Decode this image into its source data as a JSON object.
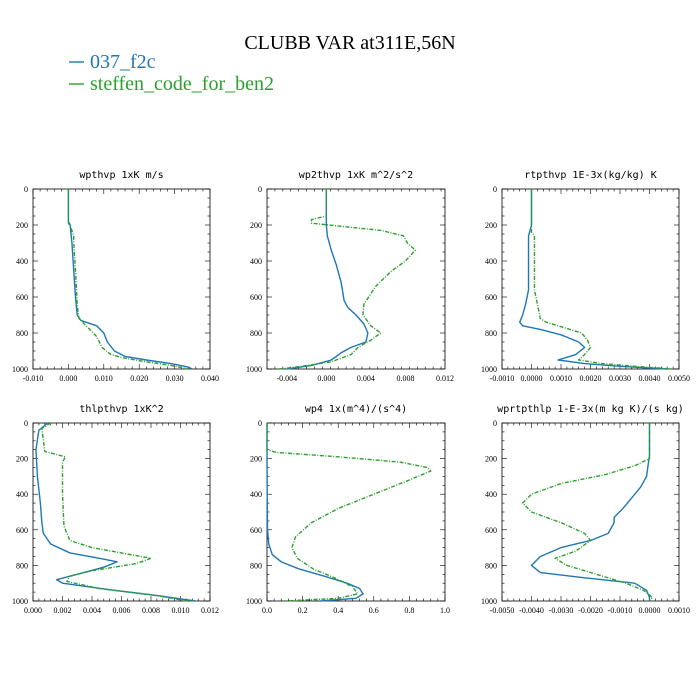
{
  "title": "CLUBB VAR at311E,56N",
  "legend": [
    {
      "name": "037_f2c",
      "color": "#1f77b4"
    },
    {
      "name": "steffen_code_for_ben2",
      "color": "#2ca02c"
    }
  ],
  "chart_data": [
    {
      "type": "line",
      "title": "wpthvp  1xK m/s",
      "xlim": [
        -0.01,
        0.04
      ],
      "ylim": [
        1000,
        0
      ],
      "xticks": [
        "-0.010",
        "0.000",
        "0.010",
        "0.020",
        "0.030",
        "0.040"
      ],
      "yticks": [
        "0",
        "200",
        "400",
        "600",
        "800",
        "1000"
      ],
      "series": [
        {
          "name": "037_f2c",
          "color": "#1f77b4",
          "dash": false,
          "points": [
            [
              0,
              0
            ],
            [
              0,
              180
            ],
            [
              0.0005,
              200
            ],
            [
              0.001,
              300
            ],
            [
              0.0015,
              450
            ],
            [
              0.002,
              600
            ],
            [
              0.0025,
              700
            ],
            [
              0.0035,
              730
            ],
            [
              0.008,
              760
            ],
            [
              0.01,
              800
            ],
            [
              0.011,
              850
            ],
            [
              0.013,
              900
            ],
            [
              0.016,
              930
            ],
            [
              0.022,
              950
            ],
            [
              0.029,
              970
            ],
            [
              0.034,
              990
            ],
            [
              0.035,
              1000
            ]
          ]
        },
        {
          "name": "steffen_code_for_ben2",
          "color": "#2ca02c",
          "dash": true,
          "points": [
            [
              0,
              0
            ],
            [
              0,
              190
            ],
            [
              0.0008,
              220
            ],
            [
              0.0015,
              260
            ],
            [
              0.0015,
              300
            ],
            [
              0.002,
              450
            ],
            [
              0.0025,
              650
            ],
            [
              0.003,
              720
            ],
            [
              0.006,
              780
            ],
            [
              0.008,
              820
            ],
            [
              0.0095,
              880
            ],
            [
              0.012,
              920
            ],
            [
              0.016,
              940
            ],
            [
              0.022,
              960
            ],
            [
              0.029,
              980
            ],
            [
              0.034,
              1000
            ]
          ]
        }
      ]
    },
    {
      "type": "line",
      "title": "wp2thvp  1xK m^2/s^2",
      "xlim": [
        -0.006,
        0.012
      ],
      "ylim": [
        1000,
        0
      ],
      "xticks": [
        "-0.004",
        "0.000",
        "0.004",
        "0.008",
        "0.012"
      ],
      "xtick_values": [
        -0.004,
        0.0,
        0.004,
        0.008,
        0.012
      ],
      "yticks": [
        "0",
        "200",
        "400",
        "600",
        "800",
        "1000"
      ],
      "series": [
        {
          "name": "037_f2c",
          "color": "#1f77b4",
          "dash": false,
          "points": [
            [
              0,
              0
            ],
            [
              0,
              200
            ],
            [
              0.0001,
              260
            ],
            [
              0.0005,
              340
            ],
            [
              0.001,
              420
            ],
            [
              0.0015,
              520
            ],
            [
              0.0018,
              620
            ],
            [
              0.0022,
              660
            ],
            [
              0.003,
              700
            ],
            [
              0.0038,
              750
            ],
            [
              0.0042,
              800
            ],
            [
              0.004,
              850
            ],
            [
              0.0025,
              880
            ],
            [
              0.0015,
              910
            ],
            [
              0.0005,
              950
            ],
            [
              -0.0015,
              980
            ],
            [
              -0.004,
              1000
            ]
          ]
        },
        {
          "name": "steffen_code_for_ben2",
          "color": "#2ca02c",
          "dash": true,
          "points": [
            [
              0,
              0
            ],
            [
              0,
              150
            ],
            [
              -0.0015,
              170
            ],
            [
              -0.0015,
              190
            ],
            [
              0.002,
              210
            ],
            [
              0.0055,
              230
            ],
            [
              0.0078,
              260
            ],
            [
              0.0082,
              300
            ],
            [
              0.009,
              340
            ],
            [
              0.008,
              400
            ],
            [
              0.0065,
              460
            ],
            [
              0.005,
              540
            ],
            [
              0.0038,
              640
            ],
            [
              0.0037,
              700
            ],
            [
              0.0045,
              760
            ],
            [
              0.0055,
              800
            ],
            [
              0.0045,
              840
            ],
            [
              0.0032,
              880
            ],
            [
              0.0025,
              920
            ],
            [
              0.0005,
              960
            ],
            [
              -0.0025,
              985
            ],
            [
              -0.0048,
              1000
            ]
          ]
        }
      ]
    },
    {
      "type": "line",
      "title": "rtpthvp  1E-3x(kg/kg) K",
      "xlim": [
        -0.001,
        0.005
      ],
      "ylim": [
        1000,
        0
      ],
      "xticks": [
        "-0.0010",
        "0.0000",
        "0.0010",
        "0.0020",
        "0.0030",
        "0.0040",
        "0.0050"
      ],
      "yticks": [
        "0",
        "200",
        "400",
        "600",
        "800",
        "1000"
      ],
      "series": [
        {
          "name": "037_f2c",
          "color": "#1f77b4",
          "dash": false,
          "points": [
            [
              0,
              0
            ],
            [
              0,
              200
            ],
            [
              -0.0001,
              260
            ],
            [
              -0.0001,
              400
            ],
            [
              -0.0001,
              560
            ],
            [
              -0.0002,
              640
            ],
            [
              -0.0003,
              700
            ],
            [
              -0.0004,
              740
            ],
            [
              -0.0003,
              760
            ],
            [
              0.0003,
              780
            ],
            [
              0.001,
              810
            ],
            [
              0.0016,
              850
            ],
            [
              0.0018,
              880
            ],
            [
              0.0015,
              920
            ],
            [
              0.0009,
              950
            ],
            [
              0.0018,
              970
            ],
            [
              0.003,
              985
            ],
            [
              0.0046,
              1000
            ]
          ]
        },
        {
          "name": "steffen_code_for_ben2",
          "color": "#2ca02c",
          "dash": true,
          "points": [
            [
              0,
              0
            ],
            [
              0,
              240
            ],
            [
              0.0001,
              260
            ],
            [
              0.0001,
              400
            ],
            [
              0.0001,
              560
            ],
            [
              0.0002,
              640
            ],
            [
              0.0003,
              720
            ],
            [
              0.0005,
              740
            ],
            [
              0.0011,
              770
            ],
            [
              0.0017,
              800
            ],
            [
              0.0019,
              840
            ],
            [
              0.002,
              880
            ],
            [
              0.0018,
              920
            ],
            [
              0.0016,
              950
            ],
            [
              0.0024,
              970
            ],
            [
              0.0035,
              985
            ],
            [
              0.0048,
              1000
            ]
          ]
        }
      ]
    },
    {
      "type": "line",
      "title": "thlpthvp  1xK^2",
      "xlim": [
        0.0,
        0.012
      ],
      "ylim": [
        1000,
        0
      ],
      "xticks": [
        "0.000",
        "0.002",
        "0.004",
        "0.006",
        "0.008",
        "0.010",
        "0.012"
      ],
      "yticks": [
        "0",
        "200",
        "400",
        "600",
        "800",
        "1000"
      ],
      "series": [
        {
          "name": "037_f2c",
          "color": "#1f77b4",
          "dash": false,
          "points": [
            [
              0.001,
              0
            ],
            [
              0.0004,
              40
            ],
            [
              0.0002,
              150
            ],
            [
              0.0003,
              300
            ],
            [
              0.0005,
              450
            ],
            [
              0.0006,
              560
            ],
            [
              0.0007,
              620
            ],
            [
              0.0012,
              680
            ],
            [
              0.0025,
              730
            ],
            [
              0.0045,
              760
            ],
            [
              0.0057,
              780
            ],
            [
              0.0048,
              810
            ],
            [
              0.003,
              850
            ],
            [
              0.0016,
              880
            ],
            [
              0.002,
              900
            ],
            [
              0.0055,
              940
            ],
            [
              0.0085,
              970
            ],
            [
              0.011,
              1000
            ]
          ]
        },
        {
          "name": "steffen_code_for_ben2",
          "color": "#2ca02c",
          "dash": true,
          "points": [
            [
              0.0012,
              0
            ],
            [
              0.0006,
              30
            ],
            [
              0.0008,
              160
            ],
            [
              0.0022,
              190
            ],
            [
              0.002,
              220
            ],
            [
              0.002,
              400
            ],
            [
              0.0021,
              580
            ],
            [
              0.0025,
              660
            ],
            [
              0.004,
              700
            ],
            [
              0.006,
              730
            ],
            [
              0.008,
              760
            ],
            [
              0.007,
              790
            ],
            [
              0.004,
              830
            ],
            [
              0.0025,
              860
            ],
            [
              0.0023,
              890
            ],
            [
              0.0045,
              930
            ],
            [
              0.008,
              965
            ],
            [
              0.0105,
              1000
            ]
          ]
        }
      ]
    },
    {
      "type": "line",
      "title": "wp4  1x(m^4)/(s^4)",
      "xlim": [
        0.0,
        1.0
      ],
      "ylim": [
        1000,
        0
      ],
      "xticks": [
        "0.0",
        "0.2",
        "0.4",
        "0.6",
        "0.8",
        "1.0"
      ],
      "yticks": [
        "0",
        "200",
        "400",
        "600",
        "800",
        "1000"
      ],
      "series": [
        {
          "name": "037_f2c",
          "color": "#1f77b4",
          "dash": false,
          "points": [
            [
              0,
              0
            ],
            [
              0,
              150
            ],
            [
              0.001,
              400
            ],
            [
              0.003,
              600
            ],
            [
              0.01,
              680
            ],
            [
              0.03,
              740
            ],
            [
              0.08,
              780
            ],
            [
              0.18,
              820
            ],
            [
              0.32,
              860
            ],
            [
              0.45,
              900
            ],
            [
              0.52,
              930
            ],
            [
              0.54,
              960
            ],
            [
              0.5,
              985
            ],
            [
              0.3,
              1000
            ]
          ]
        },
        {
          "name": "steffen_code_for_ben2",
          "color": "#2ca02c",
          "dash": true,
          "points": [
            [
              0,
              0
            ],
            [
              0,
              150
            ],
            [
              0.05,
              165
            ],
            [
              0.4,
              190
            ],
            [
              0.75,
              220
            ],
            [
              0.9,
              250
            ],
            [
              0.92,
              270
            ],
            [
              0.8,
              320
            ],
            [
              0.6,
              400
            ],
            [
              0.4,
              480
            ],
            [
              0.25,
              560
            ],
            [
              0.16,
              640
            ],
            [
              0.14,
              700
            ],
            [
              0.17,
              760
            ],
            [
              0.26,
              820
            ],
            [
              0.38,
              870
            ],
            [
              0.48,
              920
            ],
            [
              0.51,
              960
            ],
            [
              0.4,
              985
            ],
            [
              0.1,
              1000
            ]
          ]
        }
      ]
    },
    {
      "type": "line",
      "title": "wprtpthlp  1-E-3x(m kg K)/(s kg)",
      "xlim": [
        -0.005,
        0.001
      ],
      "ylim": [
        1000,
        0
      ],
      "xticks": [
        "-0.0050",
        "-0.0040",
        "-0.0030",
        "-0.0020",
        "-0.0010",
        "0.0000",
        "0.0010"
      ],
      "yticks": [
        "0",
        "200",
        "400",
        "600",
        "800",
        "1000"
      ],
      "series": [
        {
          "name": "037_f2c",
          "color": "#1f77b4",
          "dash": false,
          "points": [
            [
              0,
              0
            ],
            [
              0,
              180
            ],
            [
              -0.0001,
              300
            ],
            [
              -0.0003,
              360
            ],
            [
              -0.0006,
              420
            ],
            [
              -0.0009,
              480
            ],
            [
              -0.0012,
              530
            ],
            [
              -0.0012,
              560
            ],
            [
              -0.0014,
              620
            ],
            [
              -0.002,
              660
            ],
            [
              -0.003,
              700
            ],
            [
              -0.0037,
              750
            ],
            [
              -0.004,
              800
            ],
            [
              -0.0037,
              840
            ],
            [
              -0.0022,
              870
            ],
            [
              -0.0005,
              900
            ],
            [
              -0.0001,
              940
            ],
            [
              0,
              980
            ],
            [
              0,
              1000
            ]
          ]
        },
        {
          "name": "steffen_code_for_ben2",
          "color": "#2ca02c",
          "dash": true,
          "points": [
            [
              0,
              0
            ],
            [
              0,
              200
            ],
            [
              -0.0005,
              240
            ],
            [
              -0.0015,
              290
            ],
            [
              -0.003,
              340
            ],
            [
              -0.004,
              400
            ],
            [
              -0.0043,
              450
            ],
            [
              -0.004,
              500
            ],
            [
              -0.003,
              560
            ],
            [
              -0.0022,
              620
            ],
            [
              -0.002,
              660
            ],
            [
              -0.0025,
              720
            ],
            [
              -0.0032,
              760
            ],
            [
              -0.0028,
              800
            ],
            [
              -0.0018,
              850
            ],
            [
              -0.0008,
              900
            ],
            [
              -0.0002,
              940
            ],
            [
              0.0001,
              980
            ],
            [
              0,
              1000
            ]
          ]
        }
      ]
    }
  ]
}
